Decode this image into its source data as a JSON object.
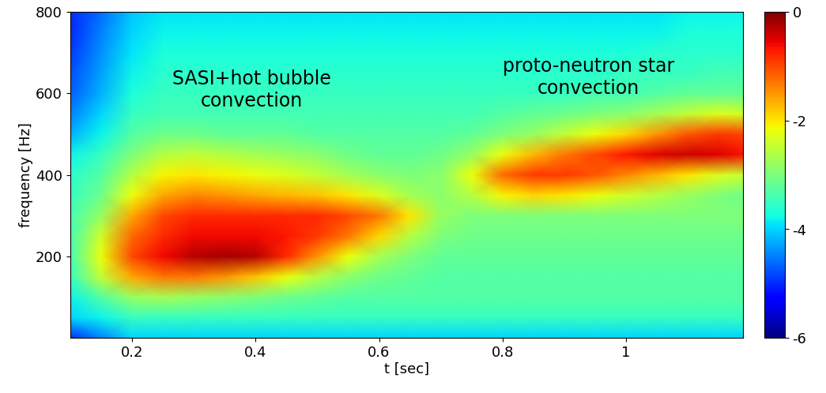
{
  "chart_data": {
    "type": "heatmap",
    "x_label": "t [sec]",
    "y_label": "frequency [Hz]",
    "annotations": [
      "SASI+hot bubble\nconvection",
      "proto-neutron star\nconvection"
    ],
    "color": "jet",
    "x": [
      0.1,
      0.15,
      0.2,
      0.25,
      0.3,
      0.35,
      0.4,
      0.45,
      0.5,
      0.55,
      0.6,
      0.65,
      0.7,
      0.75,
      0.8,
      0.85,
      0.9,
      0.95,
      1.0,
      1.05,
      1.1,
      1.15,
      1.2
    ],
    "y": [
      0,
      50,
      100,
      150,
      200,
      250,
      300,
      350,
      400,
      450,
      500,
      550,
      600,
      650,
      700,
      750,
      800
    ],
    "values": [
      [
        -5,
        -4.5,
        -4,
        -4,
        -4,
        -4,
        -4,
        -4,
        -4,
        -4,
        -4,
        -4,
        -4,
        -4,
        -4,
        -4,
        -4,
        -4,
        -4,
        -4,
        -4,
        -4,
        -4
      ],
      [
        -4,
        -3.8,
        -3.5,
        -3.5,
        -3.5,
        -3.5,
        -3.5,
        -3.5,
        -3.5,
        -3.5,
        -3.5,
        -3.5,
        -3.5,
        -3.5,
        -3.5,
        -3.5,
        -3.5,
        -3.5,
        -3.5,
        -3.5,
        -3.5,
        -3.5,
        -3.5
      ],
      [
        -3.8,
        -3.3,
        -2.8,
        -2.7,
        -2.8,
        -2.9,
        -3,
        -3.1,
        -3.2,
        -3.3,
        -3.3,
        -3.3,
        -3.3,
        -3.3,
        -3.3,
        -3.3,
        -3.3,
        -3.3,
        -3.3,
        -3.3,
        -3.3,
        -3.3,
        -3.3
      ],
      [
        -3.5,
        -2.5,
        -1.6,
        -1.3,
        -1.3,
        -1.5,
        -1.8,
        -2.2,
        -2.6,
        -2.9,
        -3.1,
        -3.2,
        -3.3,
        -3.3,
        -3.3,
        -3.3,
        -3.3,
        -3.3,
        -3.3,
        -3.3,
        -3.3,
        -3.3,
        -3.3
      ],
      [
        -3.4,
        -2.2,
        -1.0,
        -0.6,
        -0.3,
        -0.2,
        -0.3,
        -0.8,
        -1.5,
        -2.2,
        -2.7,
        -3.0,
        -3.2,
        -3.2,
        -3.2,
        -3.2,
        -3.2,
        -3.2,
        -3.2,
        -3.2,
        -3.2,
        -3.2,
        -3.2
      ],
      [
        -3.4,
        -2.4,
        -1.2,
        -0.8,
        -0.6,
        -0.6,
        -0.6,
        -0.7,
        -0.9,
        -1.3,
        -1.9,
        -2.6,
        -3.0,
        -3.1,
        -3.1,
        -3.1,
        -3.1,
        -3.1,
        -3.1,
        -3.1,
        -3.1,
        -3.1,
        -3.1
      ],
      [
        -3.4,
        -2.8,
        -1.6,
        -1.0,
        -0.8,
        -0.8,
        -0.8,
        -0.8,
        -0.8,
        -1.0,
        -1.3,
        -2.0,
        -2.8,
        -3.0,
        -3.0,
        -3.0,
        -3.0,
        -3.0,
        -3.0,
        -3.0,
        -3.0,
        -3.0,
        -3.0
      ],
      [
        -3.5,
        -3.1,
        -2.2,
        -1.6,
        -1.4,
        -1.5,
        -1.6,
        -1.7,
        -1.8,
        -2.0,
        -2.3,
        -2.7,
        -2.9,
        -2.6,
        -2.1,
        -1.9,
        -2.0,
        -2.2,
        -2.4,
        -2.6,
        -2.8,
        -3.0,
        -3.1
      ],
      [
        -3.6,
        -3.3,
        -2.6,
        -2.1,
        -2.0,
        -2.1,
        -2.2,
        -2.3,
        -2.5,
        -2.7,
        -2.9,
        -3.0,
        -2.9,
        -2.2,
        -1.2,
        -0.9,
        -0.9,
        -1.1,
        -1.4,
        -1.7,
        -2.0,
        -2.3,
        -2.5
      ],
      [
        -3.8,
        -3.5,
        -3.0,
        -2.6,
        -2.5,
        -2.6,
        -2.7,
        -2.8,
        -2.9,
        -3.1,
        -3.2,
        -3.2,
        -3.1,
        -2.8,
        -2.2,
        -1.7,
        -1.3,
        -1.0,
        -0.7,
        -0.5,
        -0.4,
        -0.5,
        -0.7
      ],
      [
        -4.2,
        -3.8,
        -3.3,
        -3.1,
        -3.1,
        -3.2,
        -3.2,
        -3.2,
        -3.3,
        -3.3,
        -3.3,
        -3.3,
        -3.3,
        -3.2,
        -3.0,
        -2.8,
        -2.5,
        -2.2,
        -1.9,
        -1.5,
        -1.1,
        -0.9,
        -1.0
      ],
      [
        -4.5,
        -4.0,
        -3.5,
        -3.4,
        -3.4,
        -3.4,
        -3.4,
        -3.4,
        -3.4,
        -3.4,
        -3.4,
        -3.4,
        -3.4,
        -3.4,
        -3.3,
        -3.2,
        -3.1,
        -3.0,
        -2.9,
        -2.7,
        -2.5,
        -2.3,
        -2.4
      ],
      [
        -4.7,
        -4.2,
        -3.7,
        -3.5,
        -3.5,
        -3.5,
        -3.5,
        -3.5,
        -3.5,
        -3.5,
        -3.5,
        -3.5,
        -3.5,
        -3.5,
        -3.5,
        -3.5,
        -3.5,
        -3.4,
        -3.4,
        -3.3,
        -3.2,
        -3.2,
        -3.2
      ],
      [
        -4.8,
        -4.3,
        -3.8,
        -3.6,
        -3.6,
        -3.6,
        -3.6,
        -3.6,
        -3.6,
        -3.6,
        -3.6,
        -3.6,
        -3.6,
        -3.6,
        -3.6,
        -3.6,
        -3.6,
        -3.6,
        -3.5,
        -3.5,
        -3.5,
        -3.4,
        -3.4
      ],
      [
        -4.9,
        -4.4,
        -3.9,
        -3.7,
        -3.7,
        -3.7,
        -3.7,
        -3.7,
        -3.7,
        -3.7,
        -3.7,
        -3.7,
        -3.7,
        -3.7,
        -3.7,
        -3.7,
        -3.7,
        -3.7,
        -3.7,
        -3.6,
        -3.6,
        -3.6,
        -3.6
      ],
      [
        -5,
        -4.5,
        -4,
        -3.8,
        -3.8,
        -3.8,
        -3.8,
        -3.8,
        -3.8,
        -3.8,
        -3.8,
        -3.8,
        -3.8,
        -3.8,
        -3.8,
        -3.8,
        -3.8,
        -3.8,
        -3.8,
        -3.8,
        -3.7,
        -3.7,
        -3.7
      ],
      [
        -5,
        -4.6,
        -4.1,
        -3.9,
        -3.9,
        -3.9,
        -3.9,
        -3.9,
        -3.9,
        -3.9,
        -3.9,
        -3.9,
        -3.9,
        -3.9,
        -3.9,
        -3.9,
        -3.9,
        -3.9,
        -3.9,
        -3.9,
        -3.8,
        -3.8,
        -3.8
      ]
    ],
    "xlim": [
      0.1,
      1.19
    ],
    "xticks": [
      0.2,
      0.4,
      0.6,
      0.8,
      1
    ],
    "ylim": [
      0,
      800
    ],
    "yticks": [
      200,
      400,
      600,
      800
    ],
    "colorbar": {
      "range": [
        -6,
        0
      ],
      "ticks": [
        0,
        -2,
        -4,
        -6
      ]
    }
  }
}
